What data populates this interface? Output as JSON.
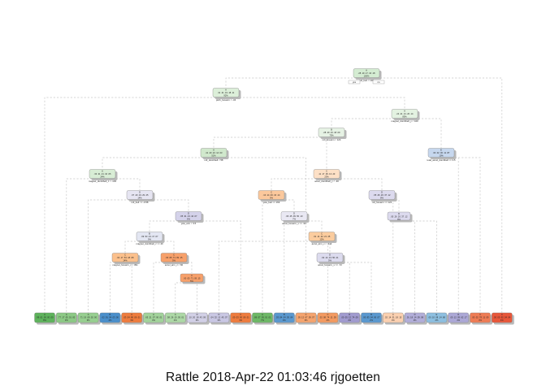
{
  "caption": "Rattle 2018-Apr-22 01:03:46 rjgoetten",
  "tree": {
    "root_split": {
      "left": "yes",
      "right": "no"
    },
    "nodes": [
      {
        "id": "n1",
        "label": "A",
        "values": ".28 .19 .17 .16 .18",
        "pct": "100%",
        "split": "roll_belt < 130",
        "color": "#d4ecd2"
      },
      {
        "id": "n2",
        "label": "A",
        "values": ".31 .21 .19 .18 .11",
        "pct": "92%",
        "split": "pitch_forearm < -34",
        "color": "#dcefd9"
      },
      {
        "id": "n3",
        "label": "A",
        "values": ".24 .21 .21 .20 .14",
        "pct": "85%",
        "split": "magnet_dumbbell_y < 440",
        "color": "#e3f2e1"
      },
      {
        "id": "n4",
        "label": "B",
        "values": ".28 .29 .16 .18 .09",
        "pct": "75%",
        "split": "roll_forearm < 124",
        "color": "#e6f2e4"
      },
      {
        "id": "n5",
        "label": "A",
        "values": ".41 .20 .22 .14 .03",
        "pct": "51%",
        "split": "roll_dumbbell < 58",
        "color": "#d0e8cc"
      },
      {
        "id": "n6",
        "label": "A",
        "values": ".33 .31 .21 .10 .05",
        "pct": "24%",
        "split": "magnet_dumbbell_z < -103",
        "color": "#d8edd5"
      },
      {
        "id": "n7",
        "label": "C",
        "values": ".11 .17 .36 .13 .23",
        "pct": "23%",
        "split": "accel_dumbbell_y < -40",
        "color": "#fde0c6"
      },
      {
        "id": "n8",
        "label": "D",
        "values": ".07 .20 .19 .29 .25",
        "pct": "14%",
        "split": "roll_belt >= -0.58",
        "color": "#e6e5f2"
      },
      {
        "id": "n9",
        "label": "C",
        "values": ".10 .14 .46 .16 .14",
        "pct": "9%",
        "split": "yaw_belt >= 169",
        "color": "#fbc89c"
      },
      {
        "id": "n10",
        "label": "D",
        "values": ".05 .26 .20 .37 .12",
        "pct": "8%",
        "split": "roll_forearm >= 121",
        "color": "#dcdaee"
      },
      {
        "id": "n11",
        "label": "D",
        "values": ".05 .31 .13 .44 .07",
        "pct": "6%",
        "split": "yaw_arm < 3.5",
        "color": "#d4d2ea"
      },
      {
        "id": "n12",
        "label": "B",
        "values": ".09 .53 .13 .17 .07",
        "pct": "9%",
        "split": "magnet_dumbbell_z >= 40",
        "color": "#e3e6f2"
      },
      {
        "id": "n13",
        "label": "D",
        "values": ".06 .25 .09 .50 .10",
        "pct": "7%",
        "split": "accel_forearm_x >= -91",
        "color": "#e9e8f3"
      },
      {
        "id": "n14",
        "label": "C",
        "values": ".04 .17 .53 .18 .08",
        "pct": "14%",
        "split": "magnet_forearm_z < 391",
        "color": "#fbc08c"
      },
      {
        "id": "n15",
        "label": "C",
        "values": ".01 .11 .42 .21 .25",
        "pct": "12%",
        "split": "accel_arm_x < -214",
        "color": "#fbcc9e"
      },
      {
        "id": "n16",
        "label": "C",
        "values": ".00 .05 .71 .09 .15",
        "pct": "5%",
        "split": "accel_arm_z < 82",
        "color": "#f7a06a"
      },
      {
        "id": "n17",
        "label": "D",
        "values": ".02 .14 .13 .50 .21",
        "pct": "5%",
        "split": "accel_forearm_x >= -72",
        "color": "#dcdbee"
      },
      {
        "id": "n18",
        "label": "E",
        "values": ".00 .02 .00 .11 .87",
        "pct": "10%",
        "split": "total_accel_dumbbell >= 3.5",
        "color": "#c6d7ee"
      }
    ],
    "leaves": [
      {
        "label": "A",
        "values": ".99 .01 .00 .00 .00",
        "pct": "8%",
        "color": "#5eb35c"
      },
      {
        "label": "A",
        "values": ".77 .17 .05 .01 .00",
        "pct": "3%",
        "color": "#8cc985"
      },
      {
        "label": "A",
        "values": ".71 .19 .08 .02 .00",
        "pct": "3%",
        "color": "#97cf90"
      },
      {
        "label": "B",
        "values": ".02 .91 .04 .03 .00",
        "pct": "4%",
        "color": "#4a8fcb"
      },
      {
        "label": "C",
        "values": ".03 .04 .86 .06 .01",
        "pct": "3%",
        "color": "#ee7c3e"
      },
      {
        "label": "A",
        "values": ".65 .21 .07 .06 .01",
        "pct": "3%",
        "color": "#a2d39b"
      },
      {
        "label": "A",
        "values": ".58 .26 .10 .05 .01",
        "pct": "4%",
        "color": "#add8a6"
      },
      {
        "label": "D",
        "values": ".10 .20 .18 .43 .09",
        "pct": "3%",
        "color": "#d2d0e6"
      },
      {
        "label": "D",
        "values": ".04 .32 .12 .45 .07",
        "pct": "3%",
        "color": "#c9c7e3"
      },
      {
        "label": "C",
        "values": ".00 .03 .90 .06 .01",
        "pct": "3%",
        "color": "#ee7c3e"
      },
      {
        "label": "A",
        "values": ".86 .07 .05 .01 .01",
        "pct": "7%",
        "color": "#6db866"
      },
      {
        "label": "B",
        "values": ".03 .84 .04 .05 .04",
        "pct": "3%",
        "color": "#5a98cf"
      },
      {
        "label": "C",
        "values": ".05 .12 .67 .09 .07",
        "pct": "3%",
        "color": "#f5a46e"
      },
      {
        "label": "C",
        "values": ".02 .08 .74 .11 .05",
        "pct": "2%",
        "color": "#f39a60"
      },
      {
        "label": "D",
        "values": ".00 .05 .12 .74 .09",
        "pct": "2%",
        "color": "#a19bcf"
      },
      {
        "label": "B",
        "values": ".00 .83 .04 .06 .07",
        "pct": "2%",
        "color": "#5a98cf"
      },
      {
        "label": "C",
        "values": ".02 .14 .51 .18 .15",
        "pct": "3%",
        "color": "#fbd0b0"
      },
      {
        "label": "D",
        "values": ".01 .18 .14 .59 .08",
        "pct": "2%",
        "color": "#b2aed9"
      },
      {
        "label": "E",
        "values": ".00 .10 .08 .14 .68",
        "pct": "2%",
        "color": "#8dbfe0"
      },
      {
        "label": "D",
        "values": ".00 .12 .09 .62 .17",
        "pct": "2%",
        "color": "#aca8d6"
      },
      {
        "label": "C",
        "values": ".00 .02 .78 .11 .09",
        "pct": "3%",
        "color": "#ee7c55"
      },
      {
        "label": "C",
        "values": ".00 .00 .92 .04 .04",
        "pct": "4%",
        "color": "#e8573a"
      }
    ]
  }
}
